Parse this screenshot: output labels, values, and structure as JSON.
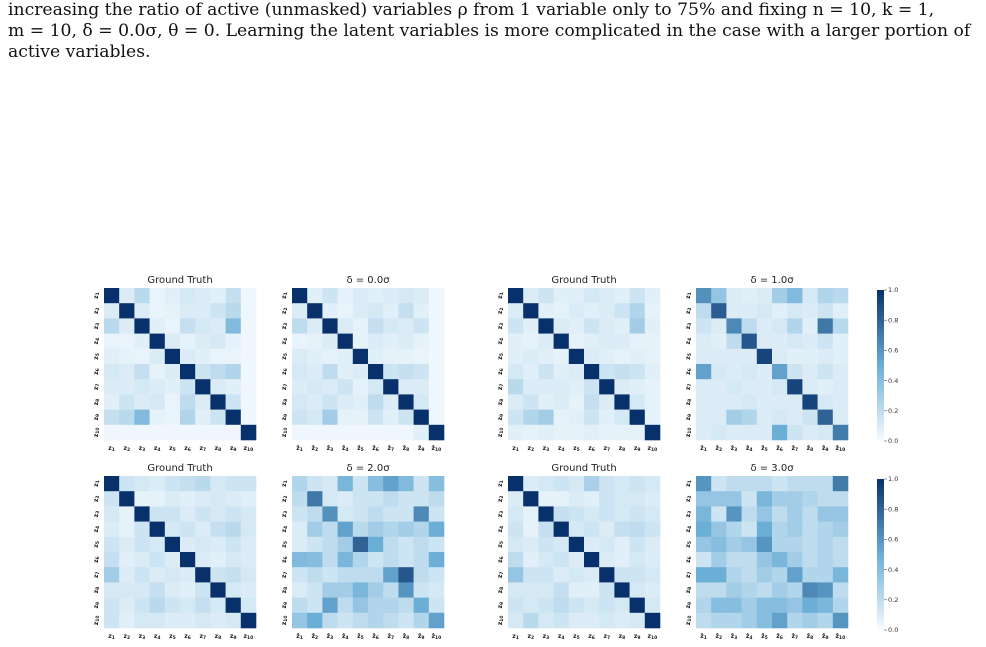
{
  "caption": {
    "line1": "increasing the ratio of active (unmasked) variables ρ from 1 variable only to 75% and fixing n = 10, k = 1,",
    "line2": "m = 10, δ = 0.0σ, θ = 0. Learning the latent variables is more complicated in the case with a larger portion of",
    "line3": "active variables."
  },
  "colormap": {
    "low": "#f7fbff",
    "mid": "#6baed6",
    "high": "#08306b",
    "name": "Blues"
  },
  "colorbar": {
    "ticks": [
      "0.0",
      "0.2",
      "0.4",
      "0.6",
      "0.8",
      "1.0"
    ],
    "range": [
      0,
      1
    ]
  },
  "chart_data": [
    {
      "type": "heatmap",
      "title": "Ground Truth",
      "x_labels": [
        "z1",
        "z2",
        "z3",
        "z4",
        "z5",
        "z6",
        "z7",
        "z8",
        "z9",
        "z10"
      ],
      "y_labels": [
        "z1",
        "z2",
        "z3",
        "z4",
        "z5",
        "z6",
        "z7",
        "z8",
        "z9",
        "z10"
      ],
      "values": [
        [
          1.0,
          0.1,
          0.22,
          0.05,
          0.08,
          0.12,
          0.1,
          0.08,
          0.18,
          0.03
        ],
        [
          0.1,
          1.0,
          0.1,
          0.05,
          0.06,
          0.1,
          0.1,
          0.15,
          0.22,
          0.03
        ],
        [
          0.22,
          0.1,
          1.0,
          0.08,
          0.05,
          0.18,
          0.12,
          0.1,
          0.42,
          0.03
        ],
        [
          0.05,
          0.05,
          0.08,
          1.0,
          0.1,
          0.06,
          0.1,
          0.12,
          0.06,
          0.03
        ],
        [
          0.08,
          0.06,
          0.05,
          0.1,
          1.0,
          0.1,
          0.08,
          0.05,
          0.05,
          0.03
        ],
        [
          0.12,
          0.1,
          0.18,
          0.06,
          0.1,
          1.0,
          0.15,
          0.2,
          0.25,
          0.03
        ],
        [
          0.1,
          0.1,
          0.12,
          0.1,
          0.08,
          0.15,
          1.0,
          0.1,
          0.08,
          0.03
        ],
        [
          0.08,
          0.15,
          0.1,
          0.12,
          0.05,
          0.2,
          0.1,
          1.0,
          0.15,
          0.03
        ],
        [
          0.18,
          0.22,
          0.42,
          0.06,
          0.05,
          0.25,
          0.08,
          0.15,
          1.0,
          0.03
        ],
        [
          0.03,
          0.03,
          0.03,
          0.03,
          0.03,
          0.03,
          0.03,
          0.03,
          0.03,
          1.0
        ]
      ]
    },
    {
      "type": "heatmap",
      "title": "δ = 0.0σ",
      "x_labels": [
        "ẑ1",
        "ẑ2",
        "ẑ3",
        "ẑ4",
        "ẑ5",
        "ẑ6",
        "ẑ7",
        "ẑ8",
        "ẑ9",
        "ẑ10"
      ],
      "y_labels": [
        "z1",
        "z2",
        "z3",
        "z4",
        "z5",
        "z6",
        "z7",
        "z8",
        "z9",
        "z10"
      ],
      "values": [
        [
          1.0,
          0.08,
          0.15,
          0.06,
          0.1,
          0.08,
          0.1,
          0.12,
          0.1,
          0.03
        ],
        [
          0.1,
          1.0,
          0.08,
          0.05,
          0.1,
          0.12,
          0.08,
          0.18,
          0.08,
          0.03
        ],
        [
          0.2,
          0.1,
          1.0,
          0.1,
          0.06,
          0.18,
          0.12,
          0.1,
          0.15,
          0.03
        ],
        [
          0.05,
          0.06,
          0.1,
          1.0,
          0.06,
          0.1,
          0.08,
          0.1,
          0.06,
          0.03
        ],
        [
          0.1,
          0.08,
          0.06,
          0.08,
          1.0,
          0.08,
          0.06,
          0.06,
          0.05,
          0.03
        ],
        [
          0.12,
          0.1,
          0.2,
          0.08,
          0.1,
          1.0,
          0.15,
          0.18,
          0.15,
          0.03
        ],
        [
          0.1,
          0.12,
          0.1,
          0.15,
          0.06,
          0.12,
          1.0,
          0.1,
          0.1,
          0.03
        ],
        [
          0.12,
          0.1,
          0.15,
          0.1,
          0.08,
          0.2,
          0.1,
          1.0,
          0.12,
          0.03
        ],
        [
          0.15,
          0.12,
          0.3,
          0.06,
          0.06,
          0.15,
          0.08,
          0.15,
          1.0,
          0.03
        ],
        [
          0.03,
          0.03,
          0.03,
          0.03,
          0.03,
          0.03,
          0.03,
          0.03,
          0.08,
          1.0
        ]
      ]
    },
    {
      "type": "heatmap",
      "title": "Ground Truth",
      "x_labels": [
        "z1",
        "z2",
        "z3",
        "z4",
        "z5",
        "z6",
        "z7",
        "z8",
        "z9",
        "z10"
      ],
      "y_labels": [
        "z1",
        "z2",
        "z3",
        "z4",
        "z5",
        "z6",
        "z7",
        "z8",
        "z9",
        "z10"
      ],
      "values": [
        [
          1.0,
          0.1,
          0.15,
          0.08,
          0.08,
          0.12,
          0.1,
          0.08,
          0.15,
          0.08
        ],
        [
          0.1,
          1.0,
          0.08,
          0.06,
          0.1,
          0.08,
          0.1,
          0.15,
          0.25,
          0.06
        ],
        [
          0.15,
          0.08,
          1.0,
          0.1,
          0.08,
          0.15,
          0.1,
          0.08,
          0.3,
          0.08
        ],
        [
          0.08,
          0.06,
          0.1,
          1.0,
          0.06,
          0.08,
          0.1,
          0.1,
          0.06,
          0.06
        ],
        [
          0.08,
          0.1,
          0.08,
          0.06,
          1.0,
          0.1,
          0.08,
          0.06,
          0.08,
          0.06
        ],
        [
          0.12,
          0.08,
          0.15,
          0.08,
          0.1,
          1.0,
          0.15,
          0.18,
          0.15,
          0.08
        ],
        [
          0.22,
          0.1,
          0.1,
          0.1,
          0.08,
          0.15,
          1.0,
          0.1,
          0.08,
          0.06
        ],
        [
          0.1,
          0.15,
          0.08,
          0.1,
          0.06,
          0.18,
          0.1,
          1.0,
          0.12,
          0.06
        ],
        [
          0.15,
          0.25,
          0.3,
          0.06,
          0.08,
          0.15,
          0.08,
          0.12,
          1.0,
          0.06
        ],
        [
          0.08,
          0.06,
          0.08,
          0.06,
          0.06,
          0.08,
          0.06,
          0.06,
          0.06,
          1.0
        ]
      ]
    },
    {
      "type": "heatmap",
      "title": "δ = 1.0σ",
      "x_labels": [
        "ẑ1",
        "ẑ2",
        "ẑ3",
        "ẑ4",
        "ẑ5",
        "ẑ6",
        "ẑ7",
        "ẑ8",
        "ẑ9",
        "ẑ10"
      ],
      "y_labels": [
        "z1",
        "z2",
        "z3",
        "z4",
        "z5",
        "z6",
        "z7",
        "z8",
        "z9",
        "z10"
      ],
      "values": [
        [
          0.62,
          0.35,
          0.1,
          0.08,
          0.1,
          0.3,
          0.42,
          0.12,
          0.25,
          0.22
        ],
        [
          0.2,
          0.82,
          0.1,
          0.1,
          0.12,
          0.08,
          0.12,
          0.1,
          0.15,
          0.08
        ],
        [
          0.15,
          0.1,
          0.65,
          0.2,
          0.1,
          0.12,
          0.25,
          0.08,
          0.72,
          0.22
        ],
        [
          0.1,
          0.08,
          0.2,
          0.85,
          0.1,
          0.1,
          0.12,
          0.1,
          0.15,
          0.08
        ],
        [
          0.1,
          0.1,
          0.1,
          0.1,
          0.92,
          0.1,
          0.08,
          0.08,
          0.1,
          0.08
        ],
        [
          0.55,
          0.12,
          0.1,
          0.12,
          0.1,
          0.55,
          0.15,
          0.1,
          0.15,
          0.1
        ],
        [
          0.1,
          0.1,
          0.12,
          0.1,
          0.1,
          0.12,
          0.92,
          0.1,
          0.08,
          0.1
        ],
        [
          0.1,
          0.1,
          0.1,
          0.12,
          0.1,
          0.1,
          0.1,
          0.92,
          0.12,
          0.1
        ],
        [
          0.1,
          0.1,
          0.3,
          0.25,
          0.1,
          0.12,
          0.1,
          0.15,
          0.8,
          0.1
        ],
        [
          0.1,
          0.12,
          0.1,
          0.1,
          0.1,
          0.5,
          0.15,
          0.1,
          0.12,
          0.7
        ]
      ]
    },
    {
      "type": "heatmap",
      "title": "Ground Truth",
      "x_labels": [
        "z1",
        "z2",
        "z3",
        "z4",
        "z5",
        "z6",
        "z7",
        "z8",
        "z9",
        "z10"
      ],
      "y_labels": [
        "z1",
        "z2",
        "z3",
        "z4",
        "z5",
        "z6",
        "z7",
        "z8",
        "z9",
        "z10"
      ],
      "values": [
        [
          1.0,
          0.15,
          0.12,
          0.1,
          0.15,
          0.18,
          0.22,
          0.12,
          0.15,
          0.15
        ],
        [
          0.15,
          1.0,
          0.06,
          0.06,
          0.1,
          0.08,
          0.1,
          0.12,
          0.1,
          0.08
        ],
        [
          0.12,
          0.06,
          1.0,
          0.15,
          0.15,
          0.1,
          0.15,
          0.12,
          0.15,
          0.12
        ],
        [
          0.1,
          0.06,
          0.15,
          1.0,
          0.12,
          0.15,
          0.1,
          0.18,
          0.22,
          0.12
        ],
        [
          0.15,
          0.1,
          0.15,
          0.12,
          1.0,
          0.1,
          0.12,
          0.1,
          0.15,
          0.1
        ],
        [
          0.18,
          0.08,
          0.1,
          0.15,
          0.1,
          1.0,
          0.1,
          0.08,
          0.12,
          0.1
        ],
        [
          0.3,
          0.1,
          0.15,
          0.1,
          0.12,
          0.1,
          1.0,
          0.15,
          0.18,
          0.12
        ],
        [
          0.12,
          0.12,
          0.12,
          0.18,
          0.1,
          0.08,
          0.15,
          1.0,
          0.12,
          0.1
        ],
        [
          0.15,
          0.1,
          0.15,
          0.22,
          0.15,
          0.12,
          0.18,
          0.12,
          1.0,
          0.12
        ],
        [
          0.15,
          0.08,
          0.12,
          0.12,
          0.1,
          0.1,
          0.12,
          0.1,
          0.12,
          1.0
        ]
      ]
    },
    {
      "type": "heatmap",
      "title": "δ = 2.0σ",
      "x_labels": [
        "ẑ1",
        "ẑ2",
        "ẑ3",
        "ẑ4",
        "ẑ5",
        "ẑ6",
        "ẑ7",
        "ẑ8",
        "ẑ9",
        "ẑ10"
      ],
      "y_labels": [
        "z1",
        "z2",
        "z3",
        "z4",
        "z5",
        "z6",
        "z7",
        "z8",
        "z9",
        "z10"
      ],
      "values": [
        [
          0.25,
          0.15,
          0.12,
          0.45,
          0.15,
          0.4,
          0.55,
          0.42,
          0.15,
          0.4
        ],
        [
          0.2,
          0.72,
          0.12,
          0.1,
          0.15,
          0.15,
          0.2,
          0.15,
          0.15,
          0.2
        ],
        [
          0.15,
          0.2,
          0.62,
          0.12,
          0.15,
          0.2,
          0.15,
          0.15,
          0.65,
          0.15
        ],
        [
          0.1,
          0.3,
          0.2,
          0.55,
          0.22,
          0.3,
          0.25,
          0.3,
          0.25,
          0.5
        ],
        [
          0.1,
          0.15,
          0.2,
          0.3,
          0.8,
          0.5,
          0.2,
          0.15,
          0.2,
          0.15
        ],
        [
          0.42,
          0.4,
          0.2,
          0.45,
          0.25,
          0.15,
          0.2,
          0.15,
          0.2,
          0.5
        ],
        [
          0.15,
          0.2,
          0.15,
          0.2,
          0.2,
          0.2,
          0.55,
          0.85,
          0.2,
          0.15
        ],
        [
          0.1,
          0.15,
          0.3,
          0.3,
          0.45,
          0.3,
          0.2,
          0.6,
          0.15,
          0.12
        ],
        [
          0.2,
          0.15,
          0.55,
          0.2,
          0.35,
          0.25,
          0.25,
          0.2,
          0.5,
          0.15
        ],
        [
          0.35,
          0.5,
          0.2,
          0.15,
          0.2,
          0.25,
          0.2,
          0.15,
          0.25,
          0.55
        ]
      ]
    },
    {
      "type": "heatmap",
      "title": "Ground Truth",
      "x_labels": [
        "z1",
        "z2",
        "z3",
        "z4",
        "z5",
        "z6",
        "z7",
        "z8",
        "z9",
        "z10"
      ],
      "y_labels": [
        "z1",
        "z2",
        "z3",
        "z4",
        "z5",
        "z6",
        "z7",
        "z8",
        "z9",
        "z10"
      ],
      "values": [
        [
          1.0,
          0.1,
          0.12,
          0.15,
          0.12,
          0.28,
          0.15,
          0.12,
          0.15,
          0.12
        ],
        [
          0.1,
          1.0,
          0.06,
          0.06,
          0.1,
          0.08,
          0.15,
          0.12,
          0.12,
          0.1
        ],
        [
          0.12,
          0.06,
          1.0,
          0.18,
          0.15,
          0.12,
          0.15,
          0.12,
          0.15,
          0.12
        ],
        [
          0.15,
          0.06,
          0.18,
          1.0,
          0.12,
          0.15,
          0.1,
          0.18,
          0.2,
          0.15
        ],
        [
          0.12,
          0.1,
          0.15,
          0.12,
          1.0,
          0.1,
          0.12,
          0.08,
          0.15,
          0.1
        ],
        [
          0.2,
          0.08,
          0.12,
          0.15,
          0.1,
          1.0,
          0.1,
          0.08,
          0.12,
          0.1
        ],
        [
          0.35,
          0.15,
          0.15,
          0.1,
          0.12,
          0.1,
          1.0,
          0.15,
          0.15,
          0.12
        ],
        [
          0.12,
          0.12,
          0.12,
          0.18,
          0.08,
          0.08,
          0.15,
          1.0,
          0.12,
          0.1
        ],
        [
          0.15,
          0.12,
          0.15,
          0.2,
          0.15,
          0.12,
          0.15,
          0.12,
          1.0,
          0.12
        ],
        [
          0.12,
          0.22,
          0.12,
          0.15,
          0.1,
          0.1,
          0.12,
          0.1,
          0.12,
          1.0
        ]
      ]
    },
    {
      "type": "heatmap",
      "title": "δ = 3.0σ",
      "x_labels": [
        "ẑ1",
        "ẑ2",
        "ẑ3",
        "ẑ4",
        "ẑ5",
        "ẑ6",
        "ẑ7",
        "ẑ8",
        "ẑ9",
        "ẑ10"
      ],
      "y_labels": [
        "z1",
        "z2",
        "z3",
        "z4",
        "z5",
        "z6",
        "z7",
        "z8",
        "z9",
        "z10"
      ],
      "values": [
        [
          0.6,
          0.15,
          0.2,
          0.2,
          0.2,
          0.15,
          0.2,
          0.2,
          0.2,
          0.7
        ],
        [
          0.35,
          0.35,
          0.35,
          0.15,
          0.45,
          0.3,
          0.3,
          0.25,
          0.2,
          0.2
        ],
        [
          0.45,
          0.15,
          0.6,
          0.2,
          0.35,
          0.2,
          0.3,
          0.2,
          0.35,
          0.35
        ],
        [
          0.5,
          0.35,
          0.25,
          0.15,
          0.5,
          0.25,
          0.3,
          0.2,
          0.25,
          0.3
        ],
        [
          0.35,
          0.4,
          0.3,
          0.35,
          0.6,
          0.25,
          0.25,
          0.2,
          0.25,
          0.2
        ],
        [
          0.15,
          0.3,
          0.2,
          0.2,
          0.35,
          0.45,
          0.3,
          0.2,
          0.25,
          0.2
        ],
        [
          0.5,
          0.5,
          0.25,
          0.2,
          0.3,
          0.25,
          0.55,
          0.25,
          0.25,
          0.45
        ],
        [
          0.2,
          0.2,
          0.3,
          0.25,
          0.2,
          0.3,
          0.25,
          0.65,
          0.6,
          0.2
        ],
        [
          0.25,
          0.4,
          0.4,
          0.3,
          0.4,
          0.4,
          0.35,
          0.5,
          0.45,
          0.25
        ],
        [
          0.2,
          0.25,
          0.25,
          0.3,
          0.4,
          0.55,
          0.25,
          0.3,
          0.25,
          0.6
        ]
      ]
    }
  ]
}
